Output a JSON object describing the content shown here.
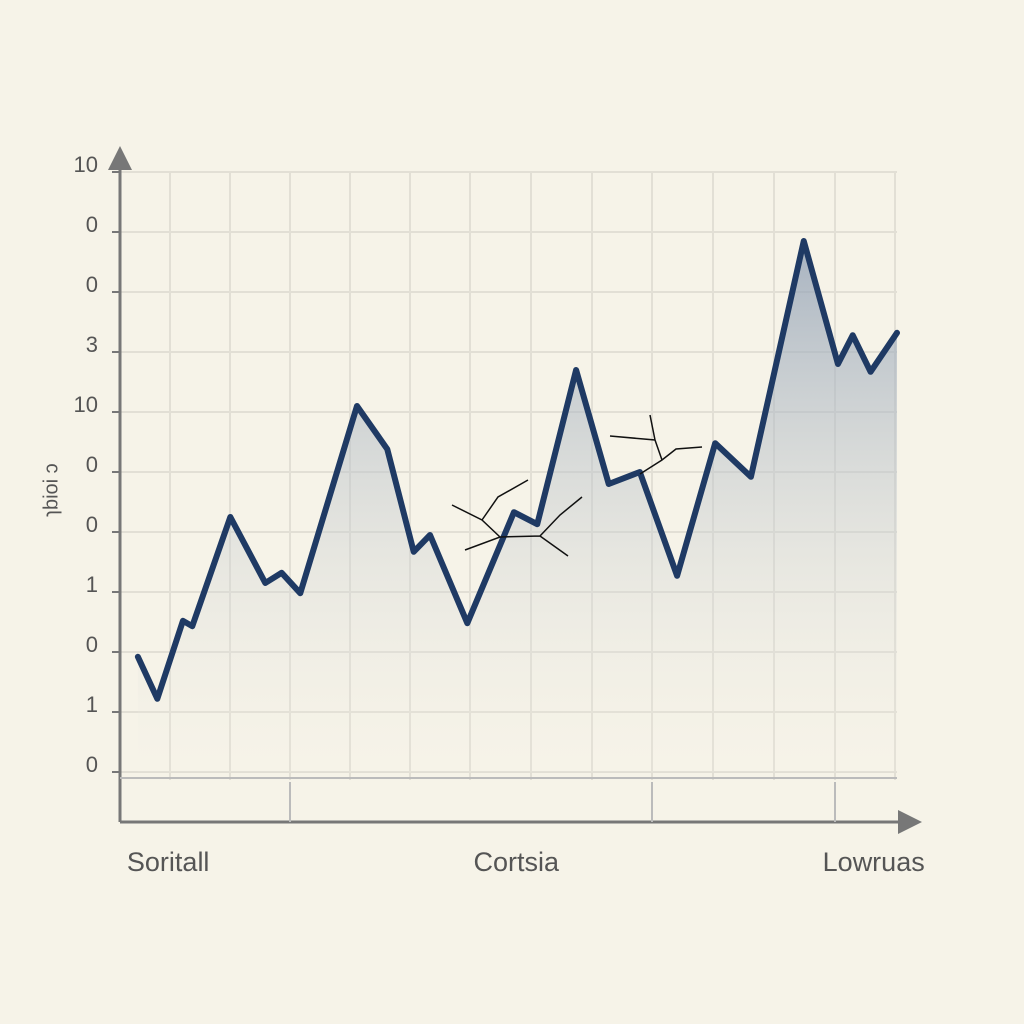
{
  "chart_data": {
    "type": "area-line",
    "y_label": "ɿbioi ɔ",
    "x": [
      2.3,
      4.8,
      8.1,
      9.3,
      14.2,
      18.7,
      20.8,
      23.2,
      30.5,
      34.4,
      37.8,
      39.9,
      44.7,
      50.7,
      53.7,
      58.7,
      62.9,
      66.9,
      71.7,
      76.6,
      81.2,
      88.0,
      92.4,
      94.3,
      96.6,
      100
    ],
    "series": [
      {
        "color": "#1f3a64",
        "values": [
          1.92,
          1.22,
          2.52,
          2.43,
          4.25,
          3.15,
          3.32,
          2.98,
          6.1,
          5.38,
          3.67,
          3.95,
          2.48,
          4.33,
          4.13,
          6.7,
          4.8,
          5.0,
          3.27,
          5.48,
          4.92,
          8.85,
          6.8,
          7.28,
          6.67,
          7.32
        ]
      }
    ],
    "xlim": [
      0,
      100
    ],
    "xticks": [
      {
        "value": 6.2,
        "label": "Soritall"
      },
      {
        "value": 51,
        "label": "Cortsia"
      },
      {
        "value": 97,
        "label": "Lowruas"
      }
    ],
    "ylim": [
      0,
      10
    ],
    "yticks": [
      0,
      1,
      {
        "value": 2,
        "label": "0"
      },
      {
        "value": 3,
        "label": "1"
      },
      {
        "value": 4,
        "label": "0"
      },
      {
        "value": 5,
        "label": "0"
      },
      {
        "value": 6,
        "label": "10"
      },
      {
        "value": 7,
        "label": "3"
      },
      {
        "value": 8,
        "label": "0"
      },
      {
        "value": 9,
        "label": "0"
      },
      10
    ],
    "grid": true
  }
}
